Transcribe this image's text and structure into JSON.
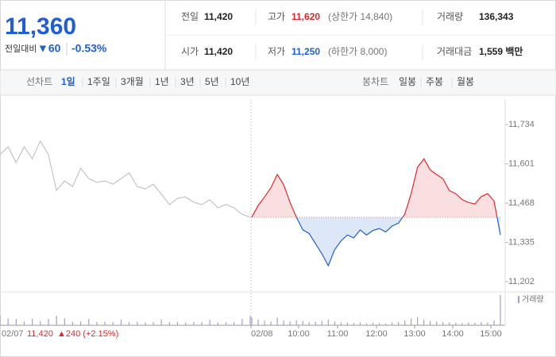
{
  "header": {
    "price": "11,360",
    "change_label": "전일대비",
    "change": "▼60",
    "change_rate": "-0.53%"
  },
  "summary": [
    [
      {
        "label": "전일",
        "value": "11,420"
      },
      {
        "label": "고가",
        "value": "11,620",
        "note": "(상한가 14,840)"
      },
      {
        "label": "거래량",
        "value": "136,343"
      }
    ],
    [
      {
        "label": "시가",
        "value": "11,420"
      },
      {
        "label": "저가",
        "value": "11,250",
        "note": "(하한가 8,000)"
      },
      {
        "label": "거래대금",
        "value": "1,559 백만"
      }
    ]
  ],
  "tabs": {
    "line_label": "선차트",
    "line_periods": [
      "1일",
      "1주일",
      "3개월",
      "1년",
      "3년",
      "5년",
      "10년"
    ],
    "candle_label": "봉차트",
    "candle_periods": [
      "일봉",
      "주봉",
      "월봉"
    ]
  },
  "chart_data": {
    "type": "line",
    "ylim": [
      11175,
      11820
    ],
    "yticks": [
      {
        "value": 11734,
        "label": "11,734"
      },
      {
        "value": 11601,
        "label": "11,601"
      },
      {
        "value": 11468,
        "label": "11,468"
      },
      {
        "value": 11335,
        "label": "11,335"
      },
      {
        "value": 11202,
        "label": "11,202"
      }
    ],
    "reference": 11420,
    "series": [
      {
        "name": "02/07",
        "color": "#c4c4c4",
        "values": [
          11632,
          11659,
          11605,
          11659,
          11618,
          11678,
          11632,
          11511,
          11543,
          11524,
          11586,
          11551,
          11538,
          11543,
          11532,
          11551,
          11570,
          11524,
          11516,
          11532,
          11498,
          11463,
          11484,
          11489,
          11471,
          11463,
          11479,
          11452,
          11463,
          11452,
          11430,
          11420
        ]
      },
      {
        "name": "02/08",
        "color_up": "#e0282d",
        "color_down": "#1f5fd1",
        "values": [
          11420,
          11460,
          11489,
          11520,
          11565,
          11530,
          11470,
          11420,
          11377,
          11365,
          11330,
          11296,
          11256,
          11310,
          11340,
          11360,
          11350,
          11377,
          11360,
          11375,
          11382,
          11370,
          11390,
          11400,
          11430,
          11500,
          11590,
          11618,
          11580,
          11565,
          11550,
          11510,
          11500,
          11480,
          11470,
          11465,
          11490,
          11500,
          11475,
          11360
        ]
      }
    ],
    "prev_close_label": "11,420",
    "prev_change_label": "▲240 (+2.15%)",
    "xlabels": [
      "10:00",
      "11:00",
      "12:00",
      "13:00",
      "14:00",
      "15:00"
    ],
    "volume": {
      "name": "거래량",
      "color": "#a99ad8",
      "series": [
        [
          3200,
          2100,
          2000,
          1200,
          2100,
          1300,
          2000,
          3000,
          2200,
          1100,
          1200,
          2000,
          1000,
          1100,
          1000,
          1800,
          1000,
          1100,
          900,
          1000,
          1900,
          1000,
          1100,
          900,
          1000,
          1000,
          1800,
          900,
          1000,
          1000,
          2000,
          2900
        ],
        [
          2500,
          1800,
          1500,
          1200,
          2400,
          1500,
          1200,
          1600,
          1400,
          900,
          1100,
          1300,
          1800,
          1200,
          900,
          800,
          700,
          900,
          600,
          800,
          700,
          600,
          900,
          1000,
          1500,
          2200,
          2600,
          1800,
          1400,
          1200,
          1000,
          900,
          800,
          700,
          900,
          800,
          1000,
          900,
          1500,
          9500
        ]
      ]
    }
  }
}
